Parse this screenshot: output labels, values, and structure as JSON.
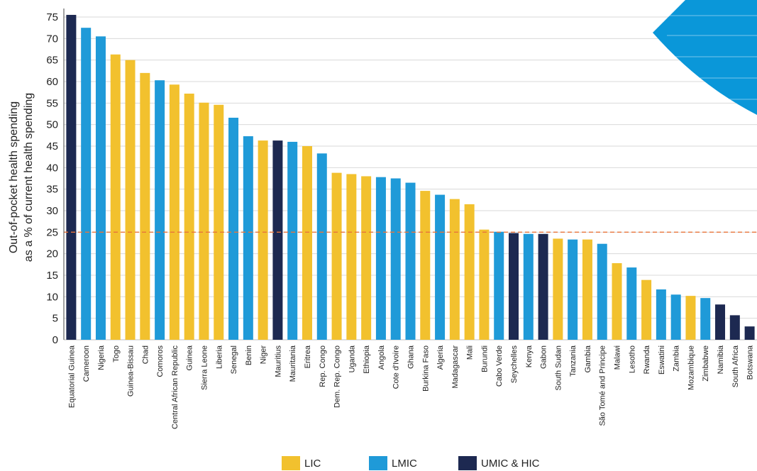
{
  "chart_data": {
    "type": "bar",
    "ylabel_line1": "Out-of-pocket health spending",
    "ylabel_line2": "as a % of current health spending",
    "ylim": [
      0,
      75
    ],
    "yticks": [
      0,
      5,
      10,
      15,
      20,
      25,
      30,
      35,
      40,
      45,
      50,
      55,
      60,
      65,
      70,
      75
    ],
    "grid": true,
    "reference_line": 25,
    "reference_color": "#e8743b",
    "groups": {
      "LIC": {
        "label": "LIC",
        "color": "#f2c12e"
      },
      "LMIC": {
        "label": "LMIC",
        "color": "#1f9ad8"
      },
      "UMIC": {
        "label": "UMIC & HIC",
        "color": "#1d2951"
      }
    },
    "legend_placement": "bottom-center",
    "categories": [
      "Equatorial Guinea",
      "Cameroon",
      "Nigeria",
      "Togo",
      "Guinea-Bissau",
      "Chad",
      "Comoros",
      "Central African Republic",
      "Guinea",
      "Sierra Leone",
      "Liberia",
      "Senegal",
      "Benin",
      "Niger",
      "Mauritius",
      "Mauritania",
      "Eritrea",
      "Rep. Congo",
      "Dem. Rep. Congo",
      "Uganda",
      "Ethiopia",
      "Angola",
      "Cote d'Ivoire",
      "Ghana",
      "Burkina Faso",
      "Algeria",
      "Madagascar",
      "Mali",
      "Burundi",
      "Cabo Verde",
      "Seychelles",
      "Kenya",
      "Gabon",
      "South Sudan",
      "Tanzania",
      "Gambia",
      "São Tomé and Principe",
      "Malawi",
      "Lesotho",
      "Rwanda",
      "Eswatini",
      "Zambia",
      "Mozambique",
      "Zimbabwe",
      "Namibia",
      "South Africa",
      "Botswana"
    ],
    "values": [
      75.5,
      72.5,
      70.5,
      66.3,
      65,
      62,
      60.3,
      59.3,
      57.2,
      55.1,
      54.6,
      51.6,
      47.3,
      46.3,
      46.3,
      46,
      45,
      43.3,
      38.8,
      38.5,
      38,
      37.8,
      37.5,
      36.5,
      34.6,
      33.7,
      32.7,
      31.5,
      25.6,
      25.1,
      24.8,
      24.6,
      24.6,
      23.5,
      23.3,
      23.3,
      22.3,
      17.8,
      16.8,
      13.9,
      11.7,
      10.5,
      10.2,
      9.7,
      8.2,
      5.7,
      3.1
    ],
    "income_groups": [
      "UMIC",
      "LMIC",
      "LMIC",
      "LIC",
      "LIC",
      "LIC",
      "LMIC",
      "LIC",
      "LIC",
      "LIC",
      "LIC",
      "LMIC",
      "LMIC",
      "LIC",
      "UMIC",
      "LMIC",
      "LIC",
      "LMIC",
      "LIC",
      "LIC",
      "LIC",
      "LMIC",
      "LMIC",
      "LMIC",
      "LIC",
      "LMIC",
      "LIC",
      "LIC",
      "LIC",
      "LMIC",
      "UMIC",
      "LMIC",
      "UMIC",
      "LIC",
      "LMIC",
      "LIC",
      "LMIC",
      "LIC",
      "LMIC",
      "LIC",
      "LMIC",
      "LMIC",
      "LIC",
      "LMIC",
      "UMIC",
      "UMIC",
      "UMIC"
    ]
  },
  "decoration": {
    "corner_shape_color": "#0a97d9"
  }
}
